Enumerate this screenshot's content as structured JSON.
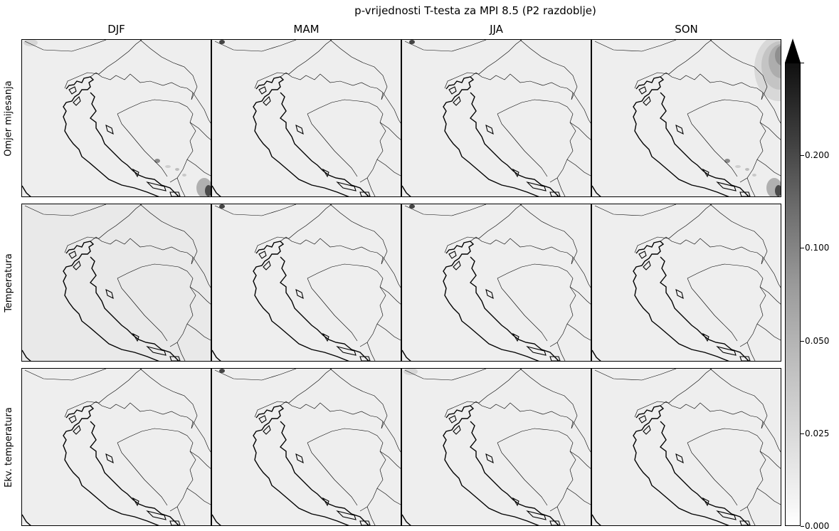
{
  "chart_data": {
    "type": "heatmap",
    "title": "p-vrijednosti T-testa za MPI 8.5 (P2 razdoblje)",
    "columns": [
      "DJF",
      "MAM",
      "JJA",
      "SON"
    ],
    "rows": [
      "Omjer mijesanja",
      "Temperatura",
      "Ekv. temperatura"
    ],
    "colorbar": {
      "ticks": [
        "0.000",
        "0.025",
        "0.050",
        "0.100",
        "0.200"
      ],
      "tick_values": [
        0.0,
        0.025,
        0.05,
        0.1,
        0.2
      ],
      "extend": "max",
      "colormap": "gray_r"
    },
    "panels": [
      {
        "row": "Omjer mijesanja",
        "col": "DJF",
        "features": [
          "light-patch-top-left",
          "dark-patches-bottom-right"
        ]
      },
      {
        "row": "Omjer mijesanja",
        "col": "MAM",
        "features": [
          "dark-dot-top-left"
        ]
      },
      {
        "row": "Omjer mijesanja",
        "col": "JJA",
        "features": [
          "dark-dot-top-left"
        ]
      },
      {
        "row": "Omjer mijesanja",
        "col": "SON",
        "features": [
          "gray-contours-top-right",
          "dark-patches-bottom-right"
        ]
      },
      {
        "row": "Temperatura",
        "col": "DJF",
        "features": []
      },
      {
        "row": "Temperatura",
        "col": "MAM",
        "features": [
          "dark-dot-top-left"
        ]
      },
      {
        "row": "Temperatura",
        "col": "JJA",
        "features": [
          "dark-dot-top-left"
        ]
      },
      {
        "row": "Temperatura",
        "col": "SON",
        "features": []
      },
      {
        "row": "Ekv. temperatura",
        "col": "DJF",
        "features": []
      },
      {
        "row": "Ekv. temperatura",
        "col": "MAM",
        "features": [
          "dark-dot-top-left"
        ]
      },
      {
        "row": "Ekv. temperatura",
        "col": "JJA",
        "features": [
          "light-patch-top-left"
        ]
      },
      {
        "row": "Ekv. temperatura",
        "col": "SON",
        "features": []
      }
    ]
  }
}
